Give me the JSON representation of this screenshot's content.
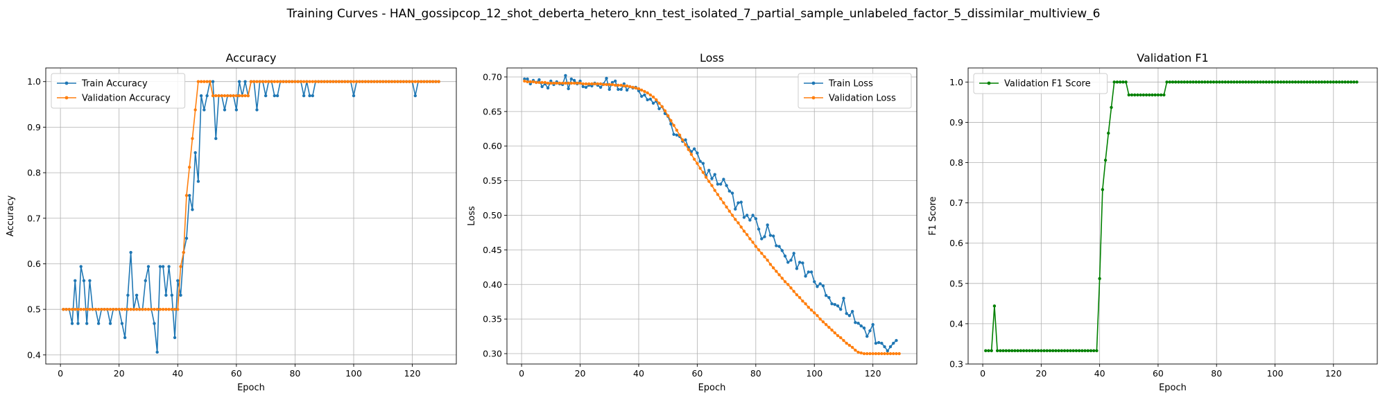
{
  "figure_title": "Training Curves - HAN_gossipcop_12_shot_deberta_hetero_knn_test_isolated_7_partial_sample_unlabeled_factor_5_dissimilar_multiview_6",
  "colors": {
    "blue": "#1f77b4",
    "orange": "#ff7f0e",
    "green": "#008000"
  },
  "chart_data": [
    {
      "type": "line",
      "title": "Accuracy",
      "xlabel": "Epoch",
      "ylabel": "Accuracy",
      "xlim": [
        -5,
        135
      ],
      "ylim": [
        0.38,
        1.03
      ],
      "xticks": [
        0,
        20,
        40,
        60,
        80,
        100,
        120
      ],
      "yticks": [
        0.4,
        0.5,
        0.6,
        0.7,
        0.8,
        0.9,
        1.0
      ],
      "ytick_labels": [
        "0.4",
        "0.5",
        "0.6",
        "0.7",
        "0.8",
        "0.9",
        "1.0"
      ],
      "grid": true,
      "legend_position": "upper-left",
      "series": [
        {
          "name": "Train Accuracy",
          "color": "#1f77b4",
          "values": [
            0.5,
            0.5,
            0.5,
            0.469,
            0.563,
            0.469,
            0.594,
            0.563,
            0.469,
            0.563,
            0.5,
            0.5,
            0.469,
            0.5,
            0.5,
            0.5,
            0.469,
            0.5,
            0.5,
            0.5,
            0.469,
            0.438,
            0.531,
            0.625,
            0.5,
            0.531,
            0.5,
            0.5,
            0.563,
            0.594,
            0.5,
            0.469,
            0.406,
            0.594,
            0.594,
            0.531,
            0.594,
            0.531,
            0.438,
            0.563,
            0.531,
            0.625,
            0.656,
            0.75,
            0.719,
            0.844,
            0.781,
            0.969,
            0.938,
            0.969,
            1.0,
            1.0,
            0.875,
            0.969,
            0.969,
            0.938,
            0.969,
            0.969,
            0.969,
            0.938,
            1.0,
            0.969,
            1.0,
            0.969,
            1.0,
            1.0,
            0.938,
            1.0,
            1.0,
            0.969,
            1.0,
            1.0,
            0.969,
            0.969,
            1.0,
            1.0,
            1.0,
            1.0,
            1.0,
            1.0,
            1.0,
            1.0,
            0.969,
            1.0,
            0.969,
            0.969,
            1.0,
            1.0,
            1.0,
            1.0,
            1.0,
            1.0,
            1.0,
            1.0,
            1.0,
            1.0,
            1.0,
            1.0,
            1.0,
            0.969,
            1.0,
            1.0,
            1.0,
            1.0,
            1.0,
            1.0,
            1.0,
            1.0,
            1.0,
            1.0,
            1.0,
            1.0,
            1.0,
            1.0,
            1.0,
            1.0,
            1.0,
            1.0,
            1.0,
            1.0,
            0.969,
            1.0,
            1.0,
            1.0,
            1.0,
            1.0,
            1.0,
            1.0,
            1.0
          ]
        },
        {
          "name": "Validation Accuracy",
          "color": "#ff7f0e",
          "values": [
            0.5,
            0.5,
            0.5,
            0.5,
            0.5,
            0.5,
            0.5,
            0.5,
            0.5,
            0.5,
            0.5,
            0.5,
            0.5,
            0.5,
            0.5,
            0.5,
            0.5,
            0.5,
            0.5,
            0.5,
            0.5,
            0.5,
            0.5,
            0.5,
            0.5,
            0.5,
            0.5,
            0.5,
            0.5,
            0.5,
            0.5,
            0.5,
            0.5,
            0.5,
            0.5,
            0.5,
            0.5,
            0.5,
            0.5,
            0.5,
            0.594,
            0.625,
            0.75,
            0.812,
            0.875,
            0.938,
            1.0,
            1.0,
            1.0,
            1.0,
            1.0,
            0.969,
            0.969,
            0.969,
            0.969,
            0.969,
            0.969,
            0.969,
            0.969,
            0.969,
            0.969,
            0.969,
            0.969,
            0.969,
            1.0,
            1.0,
            1.0,
            1.0,
            1.0,
            1.0,
            1.0,
            1.0,
            1.0,
            1.0,
            1.0,
            1.0,
            1.0,
            1.0,
            1.0,
            1.0,
            1.0,
            1.0,
            1.0,
            1.0,
            1.0,
            1.0,
            1.0,
            1.0,
            1.0,
            1.0,
            1.0,
            1.0,
            1.0,
            1.0,
            1.0,
            1.0,
            1.0,
            1.0,
            1.0,
            1.0,
            1.0,
            1.0,
            1.0,
            1.0,
            1.0,
            1.0,
            1.0,
            1.0,
            1.0,
            1.0,
            1.0,
            1.0,
            1.0,
            1.0,
            1.0,
            1.0,
            1.0,
            1.0,
            1.0,
            1.0,
            1.0,
            1.0,
            1.0,
            1.0,
            1.0,
            1.0,
            1.0,
            1.0,
            1.0
          ]
        }
      ]
    },
    {
      "type": "line",
      "title": "Loss",
      "xlabel": "Epoch",
      "ylabel": "Loss",
      "xlim": [
        -5,
        135
      ],
      "ylim": [
        0.285,
        0.713
      ],
      "xticks": [
        0,
        20,
        40,
        60,
        80,
        100,
        120
      ],
      "yticks": [
        0.3,
        0.35,
        0.4,
        0.45,
        0.5,
        0.55,
        0.6,
        0.65,
        0.7
      ],
      "ytick_labels": [
        "0.30",
        "0.35",
        "0.40",
        "0.45",
        "0.50",
        "0.55",
        "0.60",
        "0.65",
        "0.70"
      ],
      "grid": true,
      "legend_position": "upper-right",
      "series": [
        {
          "name": "Train Loss",
          "color": "#1f77b4",
          "values": [
            0.697,
            0.697,
            0.69,
            0.695,
            0.692,
            0.696,
            0.686,
            0.69,
            0.684,
            0.694,
            0.689,
            0.693,
            0.69,
            0.689,
            0.702,
            0.683,
            0.697,
            0.695,
            0.69,
            0.694,
            0.686,
            0.685,
            0.688,
            0.687,
            0.691,
            0.688,
            0.685,
            0.69,
            0.698,
            0.682,
            0.692,
            0.694,
            0.682,
            0.682,
            0.69,
            0.681,
            0.686,
            0.684,
            0.685,
            0.68,
            0.672,
            0.674,
            0.667,
            0.668,
            0.662,
            0.665,
            0.654,
            0.657,
            0.647,
            0.643,
            0.632,
            0.617,
            0.616,
            0.614,
            0.607,
            0.609,
            0.598,
            0.592,
            0.596,
            0.59,
            0.578,
            0.575,
            0.557,
            0.565,
            0.553,
            0.559,
            0.545,
            0.545,
            0.552,
            0.543,
            0.535,
            0.532,
            0.509,
            0.518,
            0.519,
            0.497,
            0.5,
            0.493,
            0.5,
            0.495,
            0.48,
            0.466,
            0.469,
            0.486,
            0.471,
            0.47,
            0.456,
            0.455,
            0.449,
            0.441,
            0.432,
            0.435,
            0.445,
            0.423,
            0.432,
            0.431,
            0.412,
            0.418,
            0.418,
            0.404,
            0.397,
            0.401,
            0.398,
            0.384,
            0.381,
            0.372,
            0.371,
            0.369,
            0.364,
            0.38,
            0.358,
            0.355,
            0.361,
            0.345,
            0.344,
            0.34,
            0.337,
            0.325,
            0.333,
            0.342,
            0.315,
            0.316,
            0.315,
            0.31,
            0.304,
            0.31,
            0.315,
            0.319
          ]
        },
        {
          "name": "Validation Loss",
          "color": "#ff7f0e",
          "values": [
            0.694,
            0.693,
            0.693,
            0.693,
            0.692,
            0.692,
            0.692,
            0.692,
            0.691,
            0.691,
            0.691,
            0.691,
            0.691,
            0.691,
            0.691,
            0.691,
            0.691,
            0.691,
            0.691,
            0.691,
            0.69,
            0.69,
            0.69,
            0.69,
            0.69,
            0.69,
            0.69,
            0.689,
            0.689,
            0.689,
            0.689,
            0.688,
            0.688,
            0.688,
            0.687,
            0.687,
            0.686,
            0.685,
            0.684,
            0.683,
            0.681,
            0.679,
            0.677,
            0.674,
            0.671,
            0.667,
            0.662,
            0.657,
            0.651,
            0.644,
            0.637,
            0.63,
            0.623,
            0.616,
            0.609,
            0.602,
            0.595,
            0.588,
            0.581,
            0.575,
            0.568,
            0.562,
            0.555,
            0.549,
            0.543,
            0.536,
            0.53,
            0.524,
            0.518,
            0.512,
            0.506,
            0.5,
            0.494,
            0.489,
            0.483,
            0.477,
            0.472,
            0.466,
            0.461,
            0.455,
            0.45,
            0.445,
            0.44,
            0.435,
            0.429,
            0.424,
            0.419,
            0.414,
            0.409,
            0.404,
            0.4,
            0.395,
            0.39,
            0.385,
            0.381,
            0.376,
            0.372,
            0.367,
            0.363,
            0.359,
            0.355,
            0.35,
            0.346,
            0.342,
            0.338,
            0.334,
            0.33,
            0.326,
            0.323,
            0.319,
            0.315,
            0.312,
            0.309,
            0.305,
            0.302,
            0.301,
            0.3,
            0.3,
            0.3,
            0.3,
            0.3,
            0.3,
            0.3,
            0.3,
            0.3,
            0.3,
            0.3,
            0.3,
            0.3
          ]
        }
      ]
    },
    {
      "type": "line",
      "title": "Validation F1",
      "xlabel": "Epoch",
      "ylabel": "F1 Score",
      "xlim": [
        -5,
        135
      ],
      "ylim": [
        0.3,
        1.035
      ],
      "xticks": [
        0,
        20,
        40,
        60,
        80,
        100,
        120
      ],
      "yticks": [
        0.3,
        0.4,
        0.5,
        0.6,
        0.7,
        0.8,
        0.9,
        1.0
      ],
      "ytick_labels": [
        "0.3",
        "0.4",
        "0.5",
        "0.6",
        "0.7",
        "0.8",
        "0.9",
        "1.0"
      ],
      "grid": true,
      "legend_position": "upper-left",
      "series": [
        {
          "name": "Validation F1 Score",
          "color": "#008000",
          "values": [
            0.333,
            0.333,
            0.333,
            0.444,
            0.333,
            0.333,
            0.333,
            0.333,
            0.333,
            0.333,
            0.333,
            0.333,
            0.333,
            0.333,
            0.333,
            0.333,
            0.333,
            0.333,
            0.333,
            0.333,
            0.333,
            0.333,
            0.333,
            0.333,
            0.333,
            0.333,
            0.333,
            0.333,
            0.333,
            0.333,
            0.333,
            0.333,
            0.333,
            0.333,
            0.333,
            0.333,
            0.333,
            0.333,
            0.333,
            0.512,
            0.733,
            0.806,
            0.873,
            0.937,
            1.0,
            1.0,
            1.0,
            1.0,
            1.0,
            0.968,
            0.968,
            0.968,
            0.968,
            0.968,
            0.968,
            0.968,
            0.968,
            0.968,
            0.968,
            0.968,
            0.968,
            0.968,
            1.0,
            1.0,
            1.0,
            1.0,
            1.0,
            1.0,
            1.0,
            1.0,
            1.0,
            1.0,
            1.0,
            1.0,
            1.0,
            1.0,
            1.0,
            1.0,
            1.0,
            1.0,
            1.0,
            1.0,
            1.0,
            1.0,
            1.0,
            1.0,
            1.0,
            1.0,
            1.0,
            1.0,
            1.0,
            1.0,
            1.0,
            1.0,
            1.0,
            1.0,
            1.0,
            1.0,
            1.0,
            1.0,
            1.0,
            1.0,
            1.0,
            1.0,
            1.0,
            1.0,
            1.0,
            1.0,
            1.0,
            1.0,
            1.0,
            1.0,
            1.0,
            1.0,
            1.0,
            1.0,
            1.0,
            1.0,
            1.0,
            1.0,
            1.0,
            1.0,
            1.0,
            1.0,
            1.0,
            1.0,
            1.0,
            1.0
          ]
        }
      ]
    }
  ]
}
